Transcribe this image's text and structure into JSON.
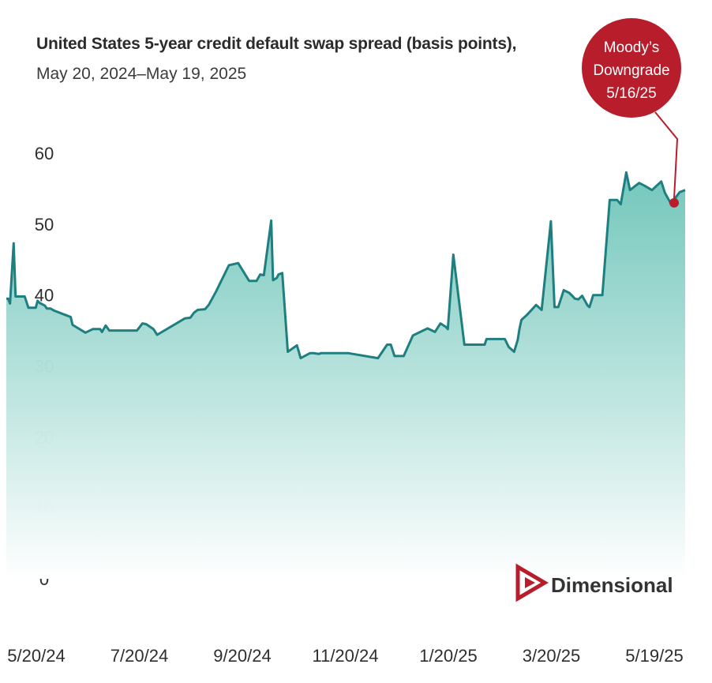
{
  "colors": {
    "line": "#1f7f80",
    "fill_top": "#6cc4b8",
    "fill_bottom": "#ffffff",
    "accent": "#b81d2b",
    "text": "#2e2e2e"
  },
  "logo": {
    "text": "Dimensional",
    "icon": "dimensional-triangle-logo-icon"
  },
  "chart_data": {
    "type": "area",
    "title": "United States 5-year credit default swap spread (basis points),",
    "subtitle": "May 20, 2024–May 19, 2025",
    "xlabel": "",
    "ylabel": "",
    "ylim": [
      0,
      60
    ],
    "yticks": [
      0,
      10,
      20,
      30,
      40,
      50,
      60
    ],
    "xlim": [
      "2024-05-18",
      "2025-05-22"
    ],
    "xticks": [
      "5/20/24",
      "7/20/24",
      "9/20/24",
      "11/20/24",
      "1/20/25",
      "3/20/25",
      "5/19/25"
    ],
    "grid": false,
    "legend": "none",
    "series": [
      {
        "x": [
          "2024-05-18",
          "2024-05-19",
          "2024-05-20",
          "2024-05-22",
          "2024-05-23",
          "2024-05-28",
          "2024-05-30",
          "2024-06-03",
          "2024-06-04",
          "2024-06-05",
          "2024-06-08",
          "2024-06-09",
          "2024-06-11",
          "2024-06-13",
          "2024-06-20",
          "2024-06-22",
          "2024-06-23",
          "2024-06-30",
          "2024-07-04",
          "2024-07-08",
          "2024-07-09",
          "2024-07-11",
          "2024-07-13",
          "2024-07-28",
          "2024-07-31",
          "2024-08-02",
          "2024-08-06",
          "2024-08-08",
          "2024-08-23",
          "2024-08-26",
          "2024-08-28",
          "2024-08-30",
          "2024-09-03",
          "2024-09-05",
          "2024-09-09",
          "2024-09-16",
          "2024-09-21",
          "2024-09-27",
          "2024-10-01",
          "2024-10-03",
          "2024-10-05",
          "2024-10-09",
          "2024-10-10",
          "2024-10-12",
          "2024-10-13",
          "2024-10-15",
          "2024-10-18",
          "2024-10-23",
          "2024-10-25",
          "2024-10-30",
          "2024-11-01",
          "2024-11-04",
          "2024-11-05",
          "2024-11-10",
          "2024-11-20",
          "2024-12-06",
          "2024-12-11",
          "2024-12-13",
          "2024-12-15",
          "2024-12-20",
          "2024-12-25",
          "2025-01-02",
          "2025-01-06",
          "2025-01-09",
          "2025-01-12",
          "2025-01-13",
          "2025-01-16",
          "2025-01-22",
          "2025-01-24",
          "2025-01-30",
          "2025-02-02",
          "2025-02-03",
          "2025-02-04",
          "2025-02-06",
          "2025-02-10",
          "2025-02-13",
          "2025-02-15",
          "2025-02-18",
          "2025-02-20",
          "2025-02-21",
          "2025-02-22",
          "2025-02-25",
          "2025-03-02",
          "2025-03-05",
          "2025-03-10",
          "2025-03-12",
          "2025-03-13",
          "2025-03-14",
          "2025-03-17",
          "2025-03-20",
          "2025-03-22",
          "2025-03-23",
          "2025-03-25",
          "2025-03-27",
          "2025-03-30",
          "2025-03-31",
          "2025-04-02",
          "2025-04-07",
          "2025-04-11",
          "2025-04-13",
          "2025-04-15",
          "2025-04-17",
          "2025-04-20",
          "2025-04-22",
          "2025-04-27",
          "2025-04-30",
          "2025-05-04",
          "2025-05-09",
          "2025-05-11",
          "2025-05-14",
          "2025-05-16",
          "2025-05-17",
          "2025-05-19",
          "2025-05-22"
        ],
        "y": [
          39.5,
          39.5,
          38.8,
          47.3,
          39.8,
          39.8,
          38.2,
          38.2,
          39.2,
          38.9,
          38.5,
          38.1,
          38.1,
          37.8,
          37.1,
          36.9,
          35.8,
          34.7,
          35.2,
          35.2,
          34.8,
          35.7,
          35.0,
          35.0,
          36.0,
          35.9,
          35.2,
          34.4,
          36.7,
          36.8,
          37.5,
          37.9,
          38.0,
          38.6,
          40.5,
          44.2,
          44.5,
          42.0,
          42.0,
          42.9,
          42.8,
          50.5,
          42.1,
          42.4,
          42.9,
          43.1,
          32.0,
          32.9,
          31.1,
          31.8,
          31.8,
          31.7,
          31.8,
          31.8,
          31.8,
          31.1,
          33.0,
          33.0,
          31.4,
          31.4,
          34.3,
          35.3,
          34.8,
          36.0,
          35.5,
          35.2,
          45.7,
          33.0,
          33.0,
          33.0,
          33.0,
          33.8,
          33.8,
          33.8,
          33.8,
          33.8,
          32.7,
          32.0,
          33.7,
          35.3,
          36.5,
          37.2,
          38.6,
          37.9,
          50.4,
          38.3,
          38.3,
          38.3,
          40.7,
          40.3,
          39.8,
          39.5,
          39.4,
          39.9,
          38.5,
          38.3,
          40.0,
          40.0,
          53.4,
          53.4,
          53.4,
          52.8,
          57.3,
          54.8,
          55.8,
          55.4,
          54.8,
          56.0,
          54.4,
          53.0,
          53.0,
          53.8,
          54.5,
          54.8
        ]
      }
    ],
    "annotations": [
      {
        "lines": [
          "Moody’s",
          "Downgrade",
          "5/16/25"
        ],
        "x": "2025-05-16",
        "y": 53.0,
        "icon": "event-marker-dot-icon"
      }
    ]
  }
}
